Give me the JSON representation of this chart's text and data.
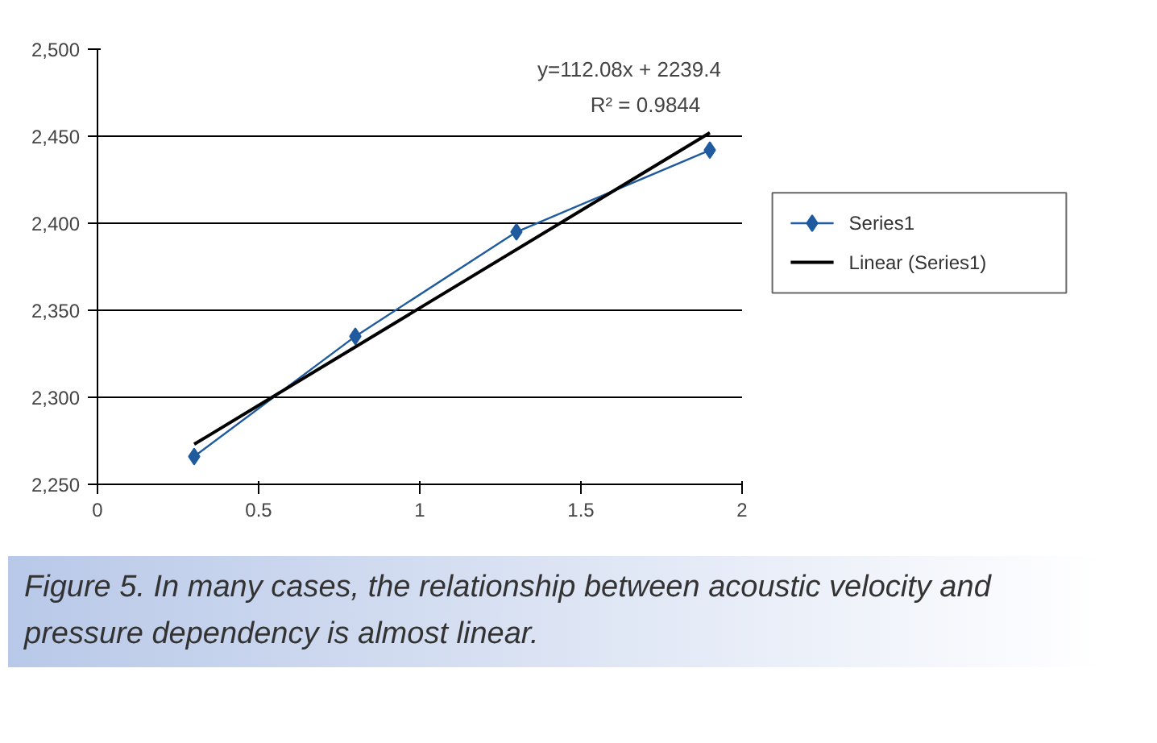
{
  "chart_data": {
    "type": "line",
    "x": [
      0.3,
      0.8,
      1.3,
      1.9
    ],
    "series": [
      {
        "name": "Series1",
        "color": "#1f5b9e",
        "values": [
          2266,
          2335,
          2395,
          2442
        ],
        "marker": "diamond"
      },
      {
        "name": "Linear (Series1)",
        "type": "line",
        "color": "#000000",
        "x": [
          0.3,
          1.9
        ],
        "values": [
          2273,
          2452
        ],
        "marker": "none"
      }
    ],
    "xlim": [
      0,
      2
    ],
    "ylim": [
      2250,
      2500
    ],
    "xticks": [
      0,
      0.5,
      1,
      1.5,
      2
    ],
    "yticks": [
      {
        "value": 2250,
        "label": "2,250"
      },
      {
        "value": 2300,
        "label": "2,300"
      },
      {
        "value": 2350,
        "label": "2,350"
      },
      {
        "value": 2400,
        "label": "2,400"
      },
      {
        "value": 2450,
        "label": "2,450"
      },
      {
        "value": 2500,
        "label": "2,500"
      }
    ],
    "grid": "y",
    "legend": "right",
    "line_style": "solid",
    "annotations": [
      "y=112.08x + 2239.4",
      "R² = 0.9844",
      "Figure 5. In many cases, the relationship between acoustic velocity and pressure dependency is almost linear."
    ]
  }
}
